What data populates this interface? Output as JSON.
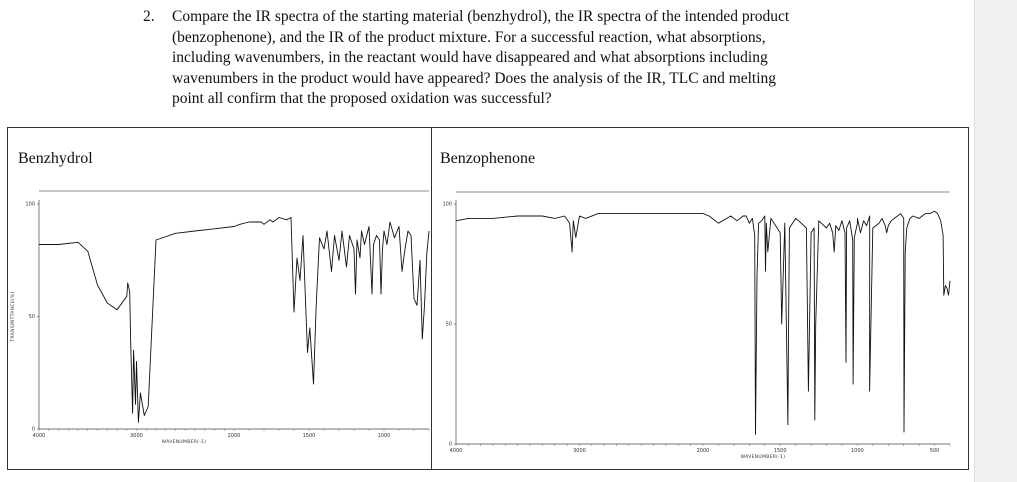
{
  "question": {
    "number": "2.",
    "lines": [
      "Compare the IR spectra of the starting material (benzhydrol), the IR spectra of the intended product",
      "(benzophenone), and the IR of the product mixture. For a successful reaction, what absorptions,",
      "including wavenumbers, in the reactant would have disappeared and what absorptions including",
      "wavenumbers in the product would have appeared? Does the analysis of the IR, TLC and melting",
      "point all confirm that the proposed oxidation was successful?"
    ]
  },
  "spectra": [
    {
      "title": "Benzhydrol",
      "y_tick_labels": [
        "100",
        "50",
        "0"
      ],
      "x_tick_labels": [
        "4000",
        "3000",
        "2000",
        "1500",
        "1000"
      ],
      "y_axis_caption": "TRANSMITTANCE(%)",
      "x_axis_caption": "WAVENUMBER(-1)"
    },
    {
      "title": "Benzophenone",
      "y_tick_labels": [
        "100",
        "50",
        "0"
      ],
      "x_tick_labels": [
        "4000",
        "3000",
        "2000",
        "1500",
        "1000",
        "500"
      ],
      "y_axis_caption": "",
      "x_axis_caption": "WAVENUMBER(-1)"
    }
  ],
  "chart_data": [
    {
      "type": "line",
      "title": "Benzhydrol",
      "xlabel": "WAVENUMBER(-1)",
      "ylabel": "TRANSMITTANCE(%)",
      "xlim": [
        4000,
        700
      ],
      "ylim": [
        0,
        100
      ],
      "x": [
        4000,
        3800,
        3600,
        3500,
        3400,
        3300,
        3200,
        3100,
        3090,
        3070,
        3060,
        3040,
        3030,
        3010,
        3000,
        2980,
        2960,
        2920,
        2880,
        2800,
        2600,
        2400,
        2200,
        2000,
        1960,
        1900,
        1820,
        1800,
        1760,
        1740,
        1700,
        1650,
        1620,
        1600,
        1580,
        1560,
        1540,
        1510,
        1495,
        1470,
        1452,
        1430,
        1400,
        1380,
        1350,
        1330,
        1300,
        1280,
        1250,
        1230,
        1200,
        1190,
        1180,
        1160,
        1150,
        1130,
        1100,
        1080,
        1070,
        1050,
        1030,
        1020,
        1010,
        1000,
        980,
        960,
        930,
        900,
        880,
        860,
        840,
        820,
        800,
        780,
        760,
        745,
        730,
        715,
        700
      ],
      "y": [
        82,
        82,
        83,
        79,
        64,
        56,
        53,
        59,
        65,
        61,
        40,
        7,
        35,
        11,
        30,
        3,
        16,
        6,
        10,
        84,
        87,
        88,
        89,
        90,
        91,
        92,
        92,
        91,
        93,
        92,
        94,
        93,
        94,
        52,
        76,
        66,
        86,
        34,
        45,
        20,
        55,
        85,
        80,
        88,
        70,
        86,
        75,
        88,
        72,
        86,
        80,
        60,
        84,
        76,
        88,
        82,
        90,
        60,
        82,
        86,
        84,
        60,
        80,
        88,
        82,
        92,
        85,
        90,
        70,
        80,
        88,
        86,
        58,
        55,
        75,
        40,
        55,
        78,
        88
      ]
    },
    {
      "type": "line",
      "title": "Benzophenone",
      "xlabel": "WAVENUMBER(-1)",
      "ylabel": "",
      "xlim": [
        4000,
        400
      ],
      "ylim": [
        0,
        100
      ],
      "x": [
        4000,
        3900,
        3700,
        3500,
        3300,
        3200,
        3120,
        3080,
        3060,
        3050,
        3030,
        3000,
        2950,
        2850,
        2600,
        2400,
        2200,
        2000,
        1960,
        1900,
        1820,
        1780,
        1740,
        1720,
        1700,
        1680,
        1665,
        1660,
        1650,
        1640,
        1620,
        1600,
        1595,
        1590,
        1580,
        1560,
        1500,
        1490,
        1470,
        1450,
        1447,
        1440,
        1420,
        1400,
        1380,
        1330,
        1317,
        1300,
        1280,
        1276,
        1270,
        1250,
        1200,
        1180,
        1160,
        1150,
        1140,
        1120,
        1100,
        1080,
        1074,
        1070,
        1050,
        1030,
        1028,
        1020,
        1000,
        1000,
        980,
        960,
        940,
        920,
        921,
        900,
        880,
        860,
        840,
        820,
        810,
        800,
        780,
        760,
        720,
        700,
        698,
        690,
        680,
        670,
        660,
        640,
        600,
        560,
        530,
        500,
        480,
        460,
        445,
        440,
        430,
        420,
        410,
        400
      ],
      "y": [
        93,
        94,
        94,
        95,
        95,
        94,
        95,
        92,
        80,
        93,
        86,
        95,
        94,
        96,
        96,
        96,
        96,
        96,
        95,
        92,
        95,
        93,
        95,
        95,
        92,
        94,
        87,
        4,
        70,
        92,
        93,
        95,
        72,
        92,
        80,
        94,
        88,
        50,
        92,
        8,
        40,
        90,
        92,
        94,
        93,
        90,
        22,
        88,
        90,
        10,
        50,
        93,
        90,
        92,
        88,
        80,
        91,
        89,
        93,
        88,
        34,
        90,
        93,
        85,
        25,
        86,
        92,
        94,
        88,
        93,
        91,
        95,
        22,
        90,
        91,
        92,
        94,
        91,
        88,
        91,
        93,
        94,
        96,
        94,
        5,
        80,
        90,
        92,
        94,
        95,
        94,
        96,
        96,
        97,
        96,
        93,
        87,
        62,
        66,
        65,
        62,
        68
      ]
    }
  ]
}
